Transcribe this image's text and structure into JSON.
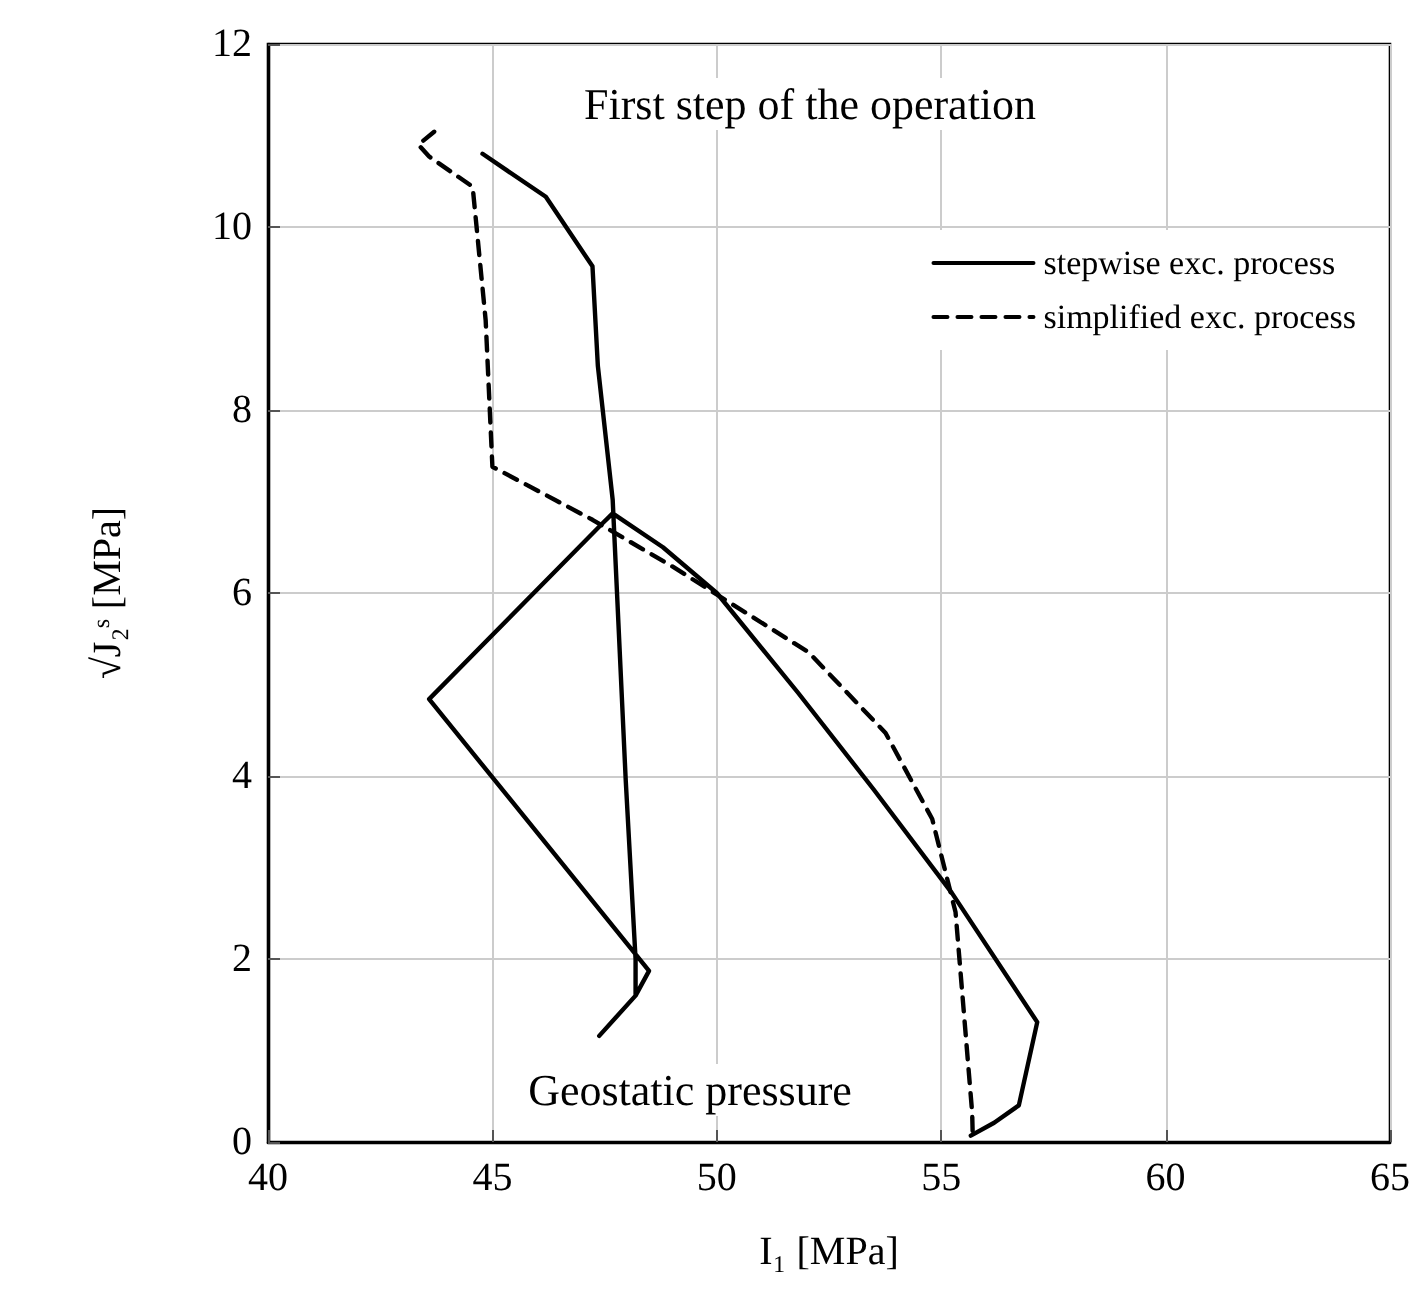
{
  "chart_data": {
    "type": "line",
    "xlabel": "I₁ [MPa]",
    "ylabel": "√J₂ˢ [MPa]",
    "xlim": [
      40,
      65
    ],
    "xticks": [
      40,
      45,
      50,
      55,
      60,
      65
    ],
    "ylim": [
      0,
      12
    ],
    "yticks": [
      0,
      2,
      4,
      6,
      8,
      10,
      12
    ],
    "grid": true,
    "legend": "top right",
    "marker": "none",
    "series": [
      {
        "name": "stepwise exc. process",
        "color": "#000000",
        "line_style": "solid",
        "x": [
          55.66,
          56.18,
          56.73,
          57.14,
          55.24,
          53.5,
          51.81,
          50.0,
          48.8,
          47.68,
          47.45,
          43.59,
          48.49,
          48.19,
          47.38,
          48.19,
          48.19,
          47.97,
          47.68,
          47.35,
          47.23,
          46.19,
          44.78
        ],
        "values": [
          0.07,
          0.21,
          0.4,
          1.31,
          2.72,
          3.85,
          4.91,
          6.0,
          6.5,
          6.87,
          6.76,
          4.84,
          1.87,
          1.6,
          1.16,
          1.6,
          2.0,
          3.96,
          7.02,
          8.48,
          9.57,
          10.33,
          10.8
        ]
      },
      {
        "name": "simplified exc. process",
        "color": "#000000",
        "line_style": "dashed",
        "x": [
          55.7,
          55.69,
          55.32,
          54.8,
          53.76,
          52.05,
          49.01,
          47.23,
          45.0,
          44.85,
          44.56,
          43.59,
          43.35,
          43.85
        ],
        "values": [
          0.12,
          0.32,
          2.51,
          3.53,
          4.47,
          5.35,
          6.29,
          6.8,
          7.38,
          8.98,
          10.44,
          10.77,
          10.9,
          11.1
        ]
      }
    ],
    "annotations": [
      "First step of the operation",
      "Geostatic pressure"
    ]
  }
}
